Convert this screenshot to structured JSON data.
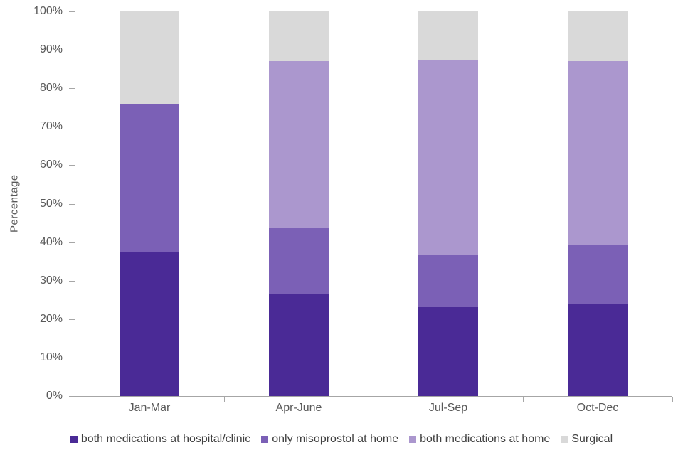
{
  "chart_data": {
    "type": "bar",
    "stacked": true,
    "title": "",
    "xlabel": "",
    "ylabel": "Percentage",
    "ylim": [
      0,
      100
    ],
    "yticks": [
      0,
      10,
      20,
      30,
      40,
      50,
      60,
      70,
      80,
      90,
      100
    ],
    "ytick_suffix": "%",
    "grid": false,
    "legend_position": "bottom",
    "categories": [
      "Jan-Mar",
      "Apr-June",
      "Jul-Sep",
      "Oct-Dec"
    ],
    "series": [
      {
        "key": "both-medications-at-hospital-clinic",
        "name": "both medications at hospital/clinic",
        "color": "#4A2A96",
        "values": [
          37.3,
          26.4,
          23.2,
          23.8
        ]
      },
      {
        "key": "only-misoprostol-at-home",
        "name": "only misoprostol at home",
        "color": "#7B60B6",
        "values": [
          38.7,
          17.4,
          13.6,
          15.6
        ]
      },
      {
        "key": "both-medications-at-home",
        "name": "both medications at home",
        "color": "#AB97CE",
        "values": [
          0,
          43.2,
          50.6,
          47.6
        ]
      },
      {
        "key": "surgical",
        "name": "Surgical",
        "color": "#D9D9D9",
        "values": [
          24.0,
          13.0,
          12.6,
          13.0
        ]
      }
    ]
  },
  "colors": {
    "axis": "#A6A6A6",
    "tick_text": "#595959",
    "legend_text": "#404040",
    "background": "#FFFFFF"
  }
}
